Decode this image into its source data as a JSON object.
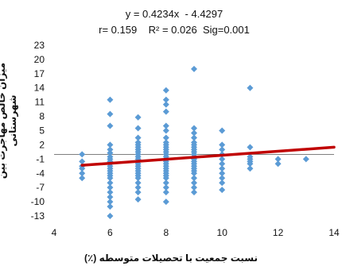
{
  "chart_data": {
    "type": "scatter",
    "equation": "y = 0.4234x  - 4.4297",
    "stats": "r= 0.159    R² = 0.026  Sig=0.001",
    "xlabel": "نسبت جمعیت با تحصیلات متوسطه (٪)",
    "ylabel": "میزان خالص مهاجرت بین شهرستانی",
    "xlim": [
      4,
      14
    ],
    "ylim": [
      -14,
      25
    ],
    "x_ticks": [
      4,
      6,
      8,
      10,
      12,
      14
    ],
    "y_ticks": [
      23,
      20,
      17,
      14,
      11,
      8,
      5,
      2,
      -1,
      -4,
      -7,
      -10,
      -13
    ],
    "trendline": {
      "slope": 0.4234,
      "intercept": -4.4297,
      "x_start": 5,
      "x_end": 14,
      "color": "#c00000"
    },
    "point_color": "#5b9bd5",
    "grid": false,
    "points": [
      [
        5,
        0
      ],
      [
        5,
        -1.5
      ],
      [
        5,
        -2.5
      ],
      [
        5,
        -3
      ],
      [
        5,
        -4
      ],
      [
        5,
        -5
      ],
      [
        6,
        11.5
      ],
      [
        6,
        8.5
      ],
      [
        6,
        6
      ],
      [
        6,
        2
      ],
      [
        6,
        1
      ],
      [
        6,
        0.3
      ],
      [
        6,
        -0.5
      ],
      [
        6,
        -1
      ],
      [
        6,
        -1.5
      ],
      [
        6,
        -2
      ],
      [
        6,
        -2.5
      ],
      [
        6,
        -3
      ],
      [
        6,
        -3.5
      ],
      [
        6,
        -4
      ],
      [
        6,
        -4.5
      ],
      [
        6,
        -5
      ],
      [
        6,
        -6
      ],
      [
        6,
        -7
      ],
      [
        6,
        -8
      ],
      [
        6,
        -9
      ],
      [
        6,
        -10
      ],
      [
        6,
        -11
      ],
      [
        6,
        -13
      ],
      [
        7,
        7.8
      ],
      [
        7,
        5.5
      ],
      [
        7,
        3.5
      ],
      [
        7,
        2.5
      ],
      [
        7,
        2
      ],
      [
        7,
        1.5
      ],
      [
        7,
        1
      ],
      [
        7,
        0.5
      ],
      [
        7,
        0
      ],
      [
        7,
        -0.5
      ],
      [
        7,
        -1
      ],
      [
        7,
        -1.5
      ],
      [
        7,
        -2
      ],
      [
        7,
        -2.5
      ],
      [
        7,
        -3
      ],
      [
        7,
        -3.5
      ],
      [
        7,
        -4
      ],
      [
        7,
        -4.5
      ],
      [
        7,
        -5
      ],
      [
        7,
        -6
      ],
      [
        7,
        -7
      ],
      [
        7,
        -8
      ],
      [
        7,
        -9.5
      ],
      [
        8,
        13.5
      ],
      [
        8,
        11.5
      ],
      [
        8,
        10.5
      ],
      [
        8,
        9
      ],
      [
        8,
        6
      ],
      [
        8,
        5
      ],
      [
        8,
        3.5
      ],
      [
        8,
        2.5
      ],
      [
        8,
        2
      ],
      [
        8,
        1.5
      ],
      [
        8,
        1
      ],
      [
        8,
        0.5
      ],
      [
        8,
        0
      ],
      [
        8,
        -0.5
      ],
      [
        8,
        -1
      ],
      [
        8,
        -1.5
      ],
      [
        8,
        -2
      ],
      [
        8,
        -2.5
      ],
      [
        8,
        -3
      ],
      [
        8,
        -3.5
      ],
      [
        8,
        -4
      ],
      [
        8,
        -4.5
      ],
      [
        8,
        -5
      ],
      [
        8,
        -6
      ],
      [
        8,
        -7
      ],
      [
        8,
        -8
      ],
      [
        8,
        -10
      ],
      [
        9,
        18
      ],
      [
        9,
        5.5
      ],
      [
        9,
        4.5
      ],
      [
        9,
        3.5
      ],
      [
        9,
        2.5
      ],
      [
        9,
        2
      ],
      [
        9,
        1.5
      ],
      [
        9,
        1
      ],
      [
        9,
        0.5
      ],
      [
        9,
        0
      ],
      [
        9,
        -0.5
      ],
      [
        9,
        -1
      ],
      [
        9,
        -1.5
      ],
      [
        9,
        -2
      ],
      [
        9,
        -2.5
      ],
      [
        9,
        -3
      ],
      [
        9,
        -3.5
      ],
      [
        9,
        -4
      ],
      [
        9,
        -5
      ],
      [
        9,
        -6
      ],
      [
        9,
        -7
      ],
      [
        9,
        -8
      ],
      [
        10,
        5
      ],
      [
        10,
        2
      ],
      [
        10,
        1
      ],
      [
        10,
        0
      ],
      [
        10,
        -1
      ],
      [
        10,
        -2
      ],
      [
        10,
        -3
      ],
      [
        10,
        -4
      ],
      [
        10,
        -5
      ],
      [
        10,
        -6
      ],
      [
        10,
        -7.5
      ],
      [
        11,
        14
      ],
      [
        11,
        1.5
      ],
      [
        11,
        -0.5
      ],
      [
        11,
        -1
      ],
      [
        11,
        -1.5
      ],
      [
        11,
        -2
      ],
      [
        11,
        -3
      ],
      [
        12,
        -1
      ],
      [
        12,
        -2
      ],
      [
        13,
        -1
      ]
    ]
  }
}
